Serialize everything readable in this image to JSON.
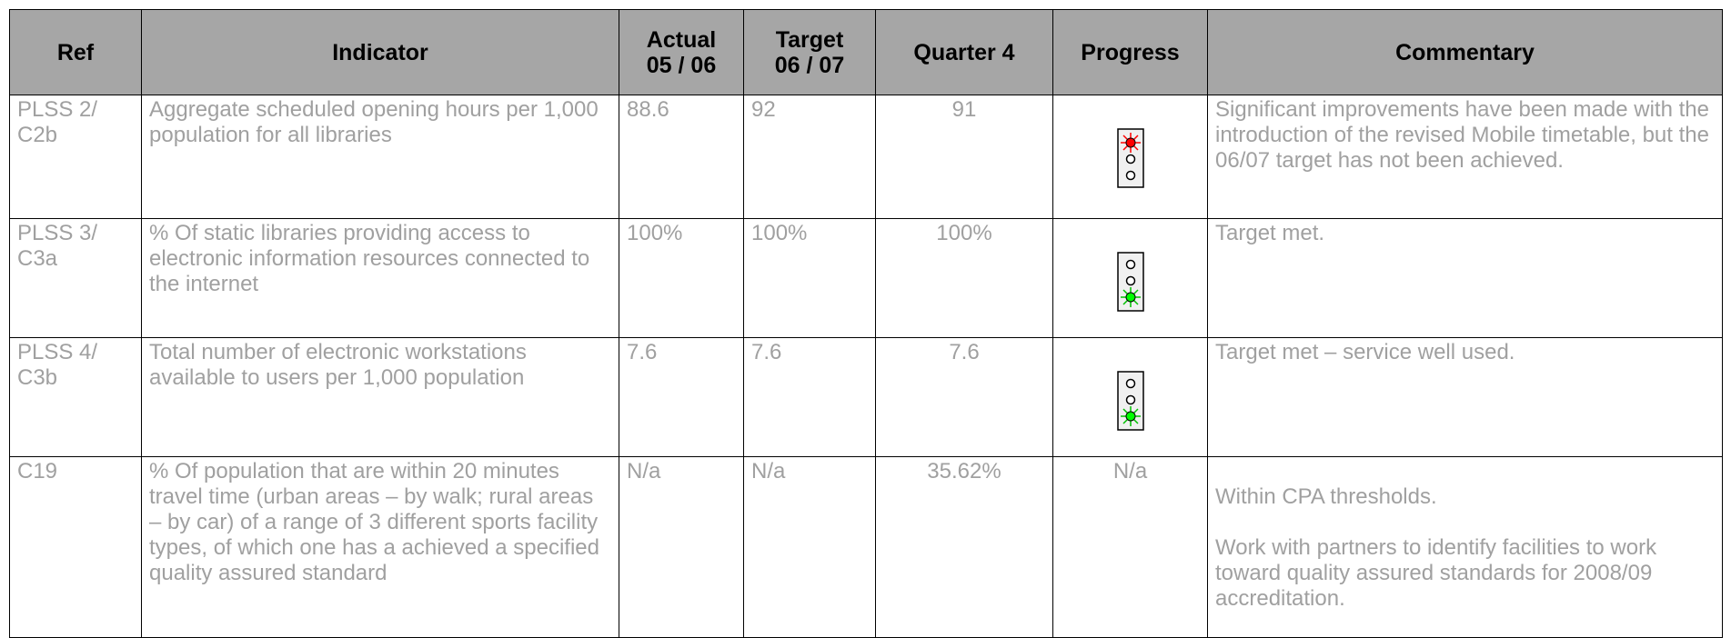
{
  "table": {
    "header": [
      "Ref",
      "Indicator",
      "Actual\n05 / 06",
      "Target\n06 / 07",
      "Quarter 4",
      "Progress",
      "Commentary"
    ],
    "rows": [
      {
        "ref": "PLSS 2/\nC2b",
        "indicator": "Aggregate scheduled opening hours per 1,000 population for all libraries",
        "actual": "88.6",
        "target": "92",
        "quarter4": "91",
        "commentary": [
          "Significant improvements have been made with the introduction of the revised Mobile timetable, but the 06/07 target has not been achieved."
        ]
      },
      {
        "ref": "PLSS 3/\nC3a",
        "indicator": "% Of static libraries providing access to electronic information resources connected to the internet",
        "actual": "100%",
        "target": "100%",
        "quarter4": "100%",
        "commentary": [
          "Target met."
        ]
      },
      {
        "ref": "PLSS 4/\nC3b",
        "indicator": "Total number of electronic workstations available to users per 1,000 population",
        "actual": "7.6",
        "target": "7.6",
        "quarter4": "7.6",
        "commentary": [
          "Target met – service well used."
        ]
      },
      {
        "ref": "C19",
        "indicator": "% Of population that are within 20 minutes travel time (urban areas – by walk; rural areas – by car) of a range of 3 different sports facility types, of which one has a achieved a specified quality assured standard",
        "actual": "N/a",
        "target": "N/a",
        "quarter4": "35.62%",
        "progress": "N/a",
        "commentary": [
          "Within CPA thresholds.",
          "Work with partners to identify facilities to work toward quality assured standards for 2008/09 accreditation."
        ]
      }
    ]
  }
}
